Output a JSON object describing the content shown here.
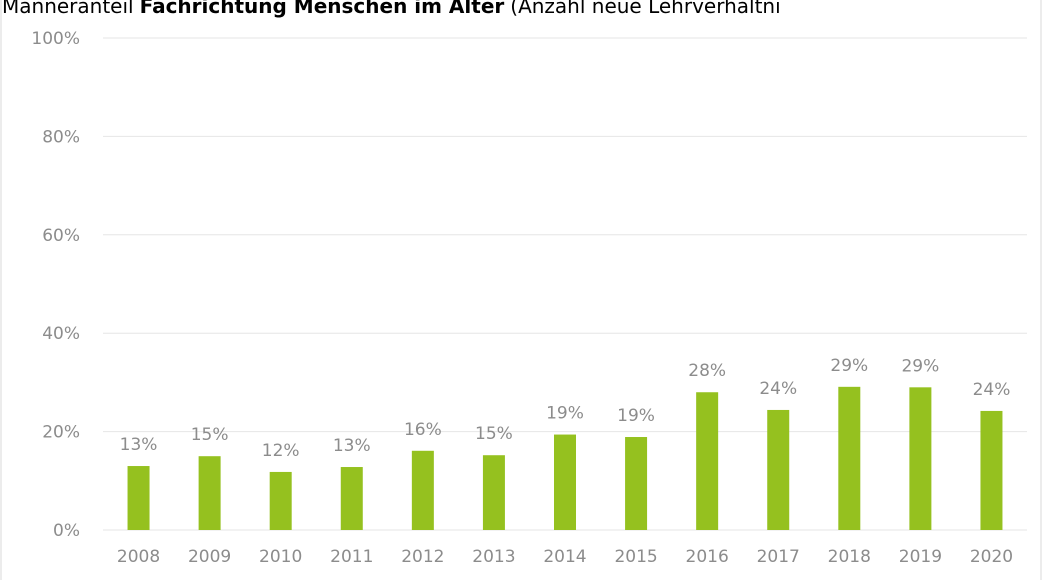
{
  "chart_data": {
    "type": "bar",
    "title": {
      "prefix": "Männeranteil",
      "bold": "Fachrichtung Menschen im Alter",
      "suffix": "(Anzahl neue Lehrverhältni"
    },
    "categories": [
      "2008",
      "2009",
      "2010",
      "2011",
      "2012",
      "2013",
      "2014",
      "2015",
      "2016",
      "2017",
      "2018",
      "2019",
      "2020"
    ],
    "values": [
      13.0,
      15.0,
      11.8,
      12.8,
      16.1,
      15.2,
      19.4,
      18.9,
      28.0,
      24.4,
      29.1,
      29.0,
      24.2
    ],
    "value_labels": [
      "13%",
      "15%",
      "12%",
      "13%",
      "16%",
      "15%",
      "19%",
      "19%",
      "28%",
      "24%",
      "29%",
      "29%",
      "24%"
    ],
    "color": "#95c11f",
    "ylim": [
      0,
      100
    ],
    "yticks": [
      {
        "value": 0,
        "label": "0%"
      },
      {
        "value": 20,
        "label": "20%"
      },
      {
        "value": 40,
        "label": "40%"
      },
      {
        "value": 60,
        "label": "60%"
      },
      {
        "value": 80,
        "label": "80%"
      },
      {
        "value": 100,
        "label": "100%"
      }
    ],
    "grid": true
  }
}
